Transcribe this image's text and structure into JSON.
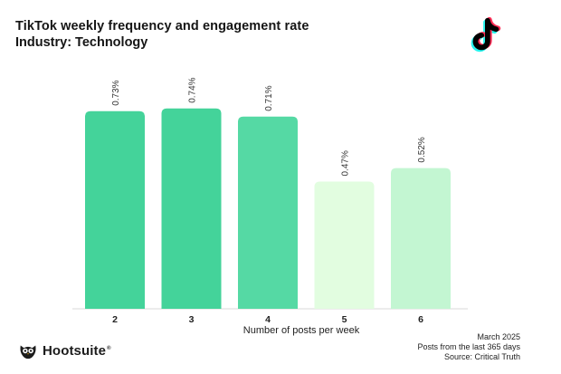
{
  "title": "TikTok weekly frequency and engagement rate",
  "subtitle": "Industry: Technology",
  "brand": {
    "name": "Hootsuite",
    "reg": "®",
    "icon": "hootsuite-owl-icon"
  },
  "platform_icon": "tiktok-logo-icon",
  "footer": {
    "date": "March 2025",
    "period": "Posts from the last 365 days",
    "source": "Source: Critical Truth"
  },
  "chart_data": {
    "type": "bar",
    "title": "TikTok weekly frequency and engagement rate",
    "subtitle": "Industry: Technology",
    "xlabel": "Number of posts per week",
    "ylabel": "",
    "categories": [
      "2",
      "3",
      "4",
      "5",
      "6"
    ],
    "values": [
      0.73,
      0.74,
      0.71,
      0.47,
      0.52
    ],
    "value_labels": [
      "0.73%",
      "0.74%",
      "0.71%",
      "0.47%",
      "0.52%"
    ],
    "colors": [
      "#44d39a",
      "#44d39a",
      "#55d9a4",
      "#e2fde0",
      "#c3f6d2"
    ],
    "ylim": [
      0,
      0.92
    ],
    "grid": false,
    "legend": "none"
  }
}
